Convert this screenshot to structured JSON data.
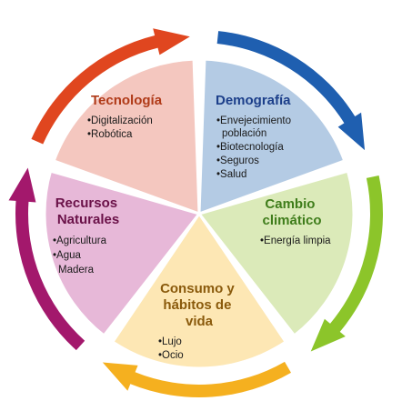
{
  "diagram": {
    "segments": [
      {
        "key": "tecnologia",
        "title": [
          "Tecnología"
        ],
        "items": [
          "•Digitalización",
          "•Robótica"
        ],
        "fill": "#f4c7bf",
        "title_color": "#b03a18",
        "arrow_color": "#e0461f"
      },
      {
        "key": "demografia",
        "title": [
          "Demografía"
        ],
        "items": [
          "•Envejecimiento",
          "  población",
          "•Biotecnología",
          "•Seguros",
          "•Salud"
        ],
        "fill": "#b4cbe4",
        "title_color": "#1c3f8a",
        "arrow_color": "#1f5fb0"
      },
      {
        "key": "cambio-climatico",
        "title": [
          "Cambio",
          "climático"
        ],
        "items": [
          "•Energía limpia"
        ],
        "fill": "#dbeab9",
        "title_color": "#3f7d1b",
        "arrow_color": "#8cc52a"
      },
      {
        "key": "consumo",
        "title": [
          "Consumo y",
          "hábitos de",
          "vida"
        ],
        "items": [
          "•Lujo",
          "•Ocio"
        ],
        "fill": "#fde7b4",
        "title_color": "#8a5a0c",
        "arrow_color": "#f5b01f"
      },
      {
        "key": "recursos-naturales",
        "title": [
          "Recursos",
          "Naturales"
        ],
        "items": [
          "•Agricultura",
          "•Agua",
          "Madera"
        ],
        "fill": "#e7b8d8",
        "title_color": "#6a1148",
        "arrow_color": "#a3186c"
      }
    ]
  }
}
